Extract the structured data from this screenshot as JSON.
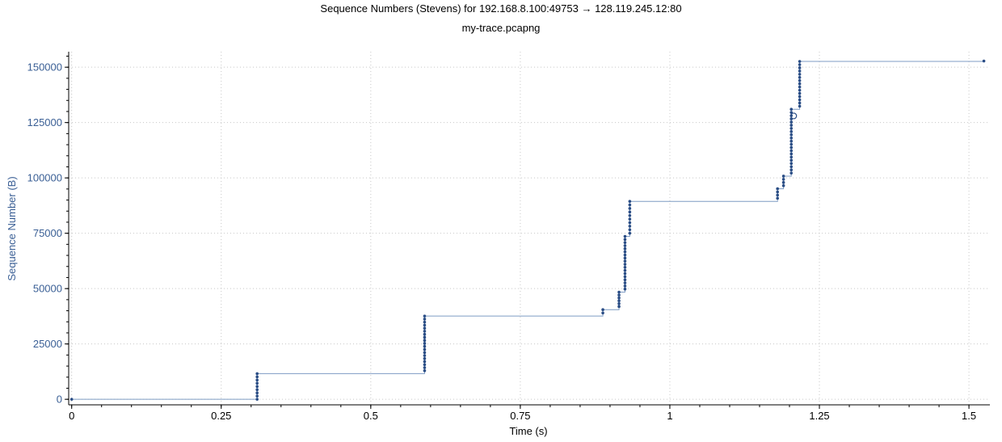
{
  "chart_data": {
    "type": "scatter",
    "title": "Sequence Numbers (Stevens) for 192.168.8.100:49753 → 128.119.245.12:80",
    "subtitle": "my-trace.pcapng",
    "xlabel": "Time (s)",
    "ylabel": "Sequence Number (B)",
    "xlim": [
      -0.005,
      1.535
    ],
    "ylim": [
      -2500,
      157000
    ],
    "xticks": [
      0,
      0.25,
      0.5,
      0.75,
      1,
      1.25,
      1.5
    ],
    "xtick_labels": [
      "0",
      "0.25",
      "0.5",
      "0.75",
      "1",
      "1.25",
      "1.5"
    ],
    "yticks": [
      0,
      25000,
      50000,
      75000,
      100000,
      125000,
      150000
    ],
    "ytick_labels": [
      "0",
      "25000",
      "50000",
      "75000",
      "100000",
      "125000",
      "150000"
    ],
    "grid": true,
    "colors": {
      "points": "#2a4d85",
      "step_line": "#7f9cc4",
      "axis_label": "#3a5f95",
      "grid": "#c8c8c8"
    },
    "series": [
      {
        "marker": "dot",
        "bursts": [
          {
            "t": 0.0,
            "seq_start": 0,
            "seq_end": 0,
            "count": 1
          },
          {
            "t": 0.31,
            "seq_start": 0,
            "seq_end": 11600,
            "count": 9
          },
          {
            "t": 0.59,
            "seq_start": 12900,
            "seq_end": 37600,
            "count": 19
          },
          {
            "t": 0.888,
            "seq_start": 39000,
            "seq_end": 40500,
            "count": 2
          },
          {
            "t": 0.915,
            "seq_start": 41900,
            "seq_end": 48400,
            "count": 6
          },
          {
            "t": 0.925,
            "seq_start": 49800,
            "seq_end": 73600,
            "count": 18
          },
          {
            "t": 0.933,
            "seq_start": 75000,
            "seq_end": 89400,
            "count": 10
          },
          {
            "t": 1.18,
            "seq_start": 90800,
            "seq_end": 95100,
            "count": 4
          },
          {
            "t": 1.19,
            "seq_start": 96500,
            "seq_end": 100800,
            "count": 4
          },
          {
            "t": 1.203,
            "seq_start": 102200,
            "seq_end": 131000,
            "count": 21
          },
          {
            "t": 1.217,
            "seq_start": 132400,
            "seq_end": 152600,
            "count": 15
          },
          {
            "t": 1.525,
            "seq_start": 152800,
            "seq_end": 152800,
            "count": 1
          }
        ],
        "highlight": {
          "t": 1.207,
          "seq": 128000
        }
      }
    ],
    "step_line": [
      [
        0.0,
        0
      ],
      [
        0.31,
        0
      ],
      [
        0.31,
        11600
      ],
      [
        0.59,
        11600
      ],
      [
        0.59,
        37600
      ],
      [
        0.888,
        37600
      ],
      [
        0.888,
        40500
      ],
      [
        0.915,
        40500
      ],
      [
        0.915,
        48400
      ],
      [
        0.925,
        48400
      ],
      [
        0.925,
        73600
      ],
      [
        0.933,
        73600
      ],
      [
        0.933,
        89400
      ],
      [
        1.18,
        89400
      ],
      [
        1.18,
        95100
      ],
      [
        1.19,
        95100
      ],
      [
        1.19,
        100800
      ],
      [
        1.203,
        100800
      ],
      [
        1.203,
        131000
      ],
      [
        1.217,
        131000
      ],
      [
        1.217,
        152600
      ],
      [
        1.525,
        152600
      ]
    ]
  }
}
